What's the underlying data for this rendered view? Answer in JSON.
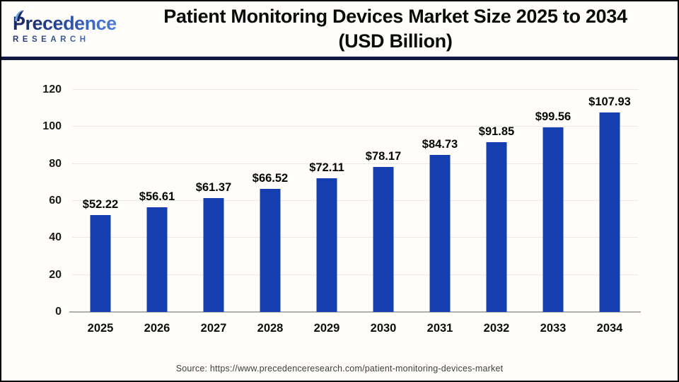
{
  "header": {
    "logo": {
      "brand": "Precedence",
      "sub": "RESEARCH"
    },
    "title_line1": "Patient Monitoring Devices Market Size 2025 to 2034",
    "title_line2": "(USD Billion)"
  },
  "chart_data": {
    "type": "bar",
    "title": "Patient Monitoring Devices Market Size 2025 to 2034 (USD Billion)",
    "categories": [
      "2025",
      "2026",
      "2027",
      "2028",
      "2029",
      "2030",
      "2031",
      "2032",
      "2033",
      "2034"
    ],
    "values": [
      52.22,
      56.61,
      61.37,
      66.52,
      72.11,
      78.17,
      84.73,
      91.85,
      99.56,
      107.93
    ],
    "value_labels": [
      "$52.22",
      "$56.61",
      "$61.37",
      "$66.52",
      "$72.11",
      "$78.17",
      "$84.73",
      "$91.85",
      "$99.56",
      "$107.93"
    ],
    "xlabel": "",
    "ylabel": "",
    "ylim": [
      0,
      120
    ],
    "yticks": [
      0,
      20,
      40,
      60,
      80,
      100,
      120
    ],
    "grid": true,
    "legend": false,
    "bar_color": "#153fb0"
  },
  "footer": {
    "source": "Source: https://www.precedenceresearch.com/patient-monitoring-devices-market"
  },
  "colors": {
    "bar_blue": "#153fb0",
    "divider_navy": "#10173f",
    "gridline_gray": "#e9e9e9",
    "axis_gray": "#b0b0b0",
    "logo_navy": "#1b2560",
    "logo_blue": "#4f7fd6",
    "leaf_accent_blue": "#6aa6e0"
  }
}
